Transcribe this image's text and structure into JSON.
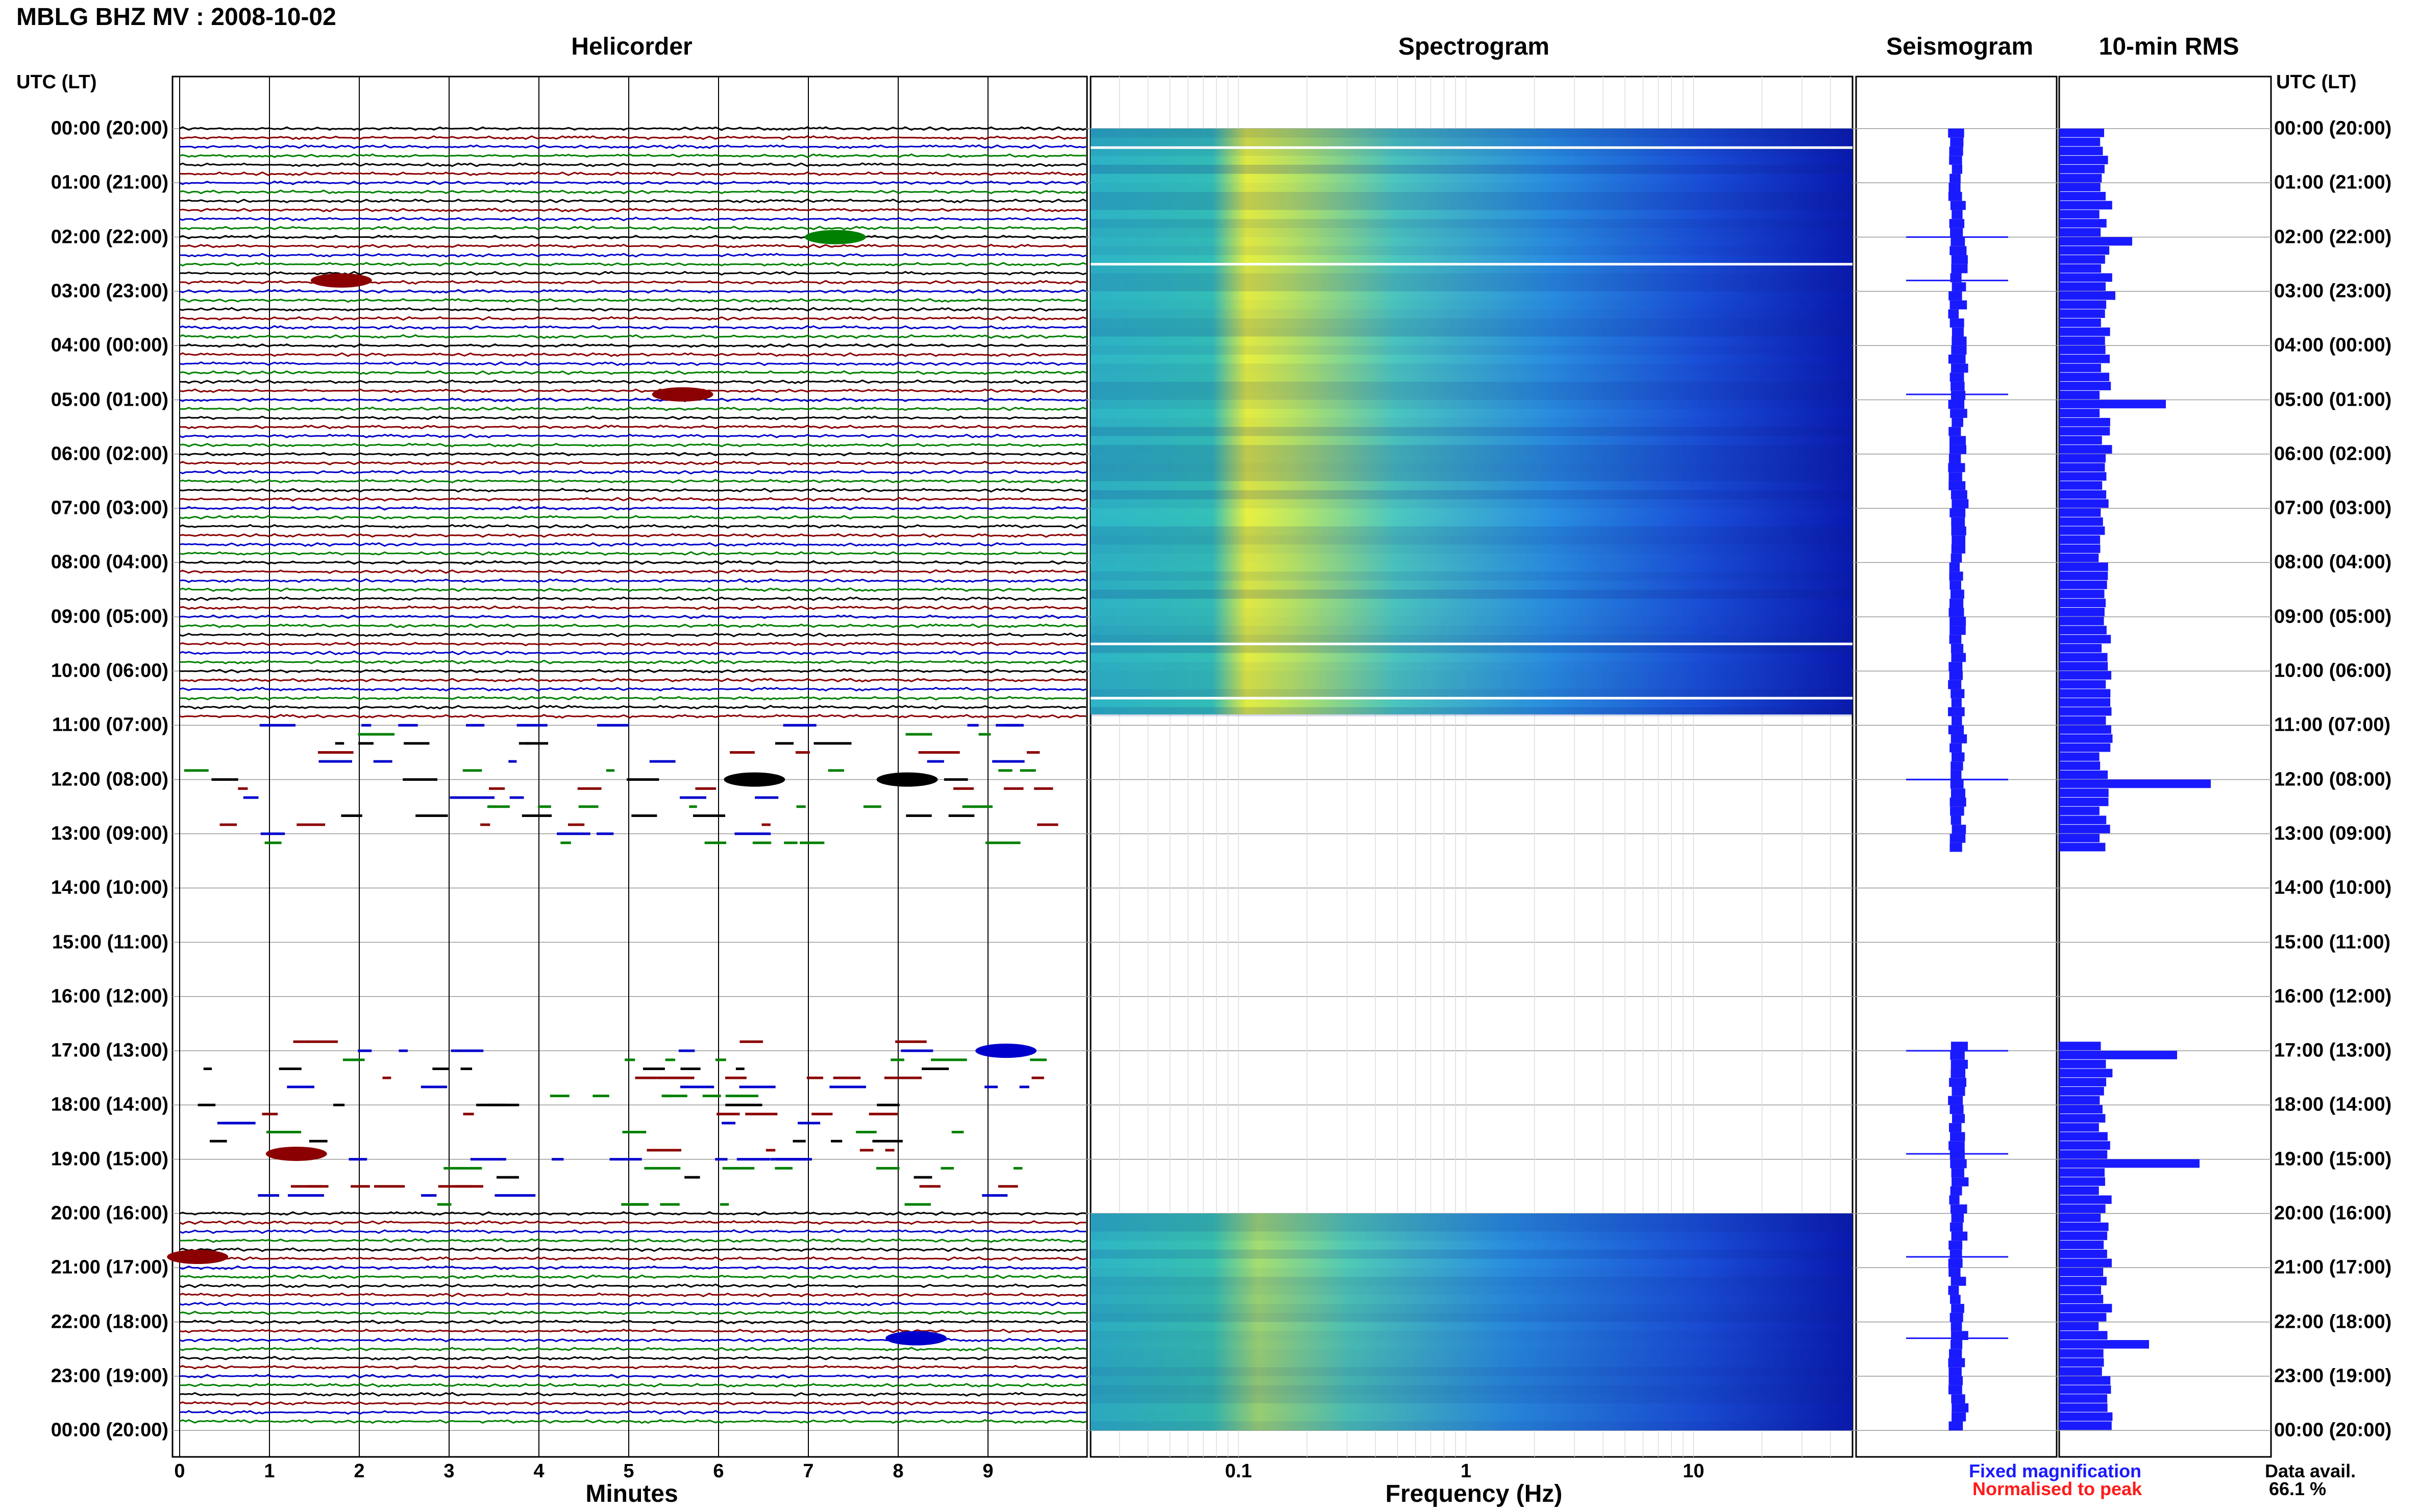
{
  "header": {
    "title": "MBLG BHZ MV : 2008-10-02"
  },
  "panels": {
    "helicorder": "Helicorder",
    "spectrogram": "Spectrogram",
    "seismogram": "Seismogram",
    "rms": "10-min RMS"
  },
  "axis": {
    "time_label": "UTC (LT)",
    "hours": [
      "00:00 (20:00)",
      "01:00 (21:00)",
      "02:00 (22:00)",
      "03:00 (23:00)",
      "04:00 (00:00)",
      "05:00 (01:00)",
      "06:00 (02:00)",
      "07:00 (03:00)",
      "08:00 (04:00)",
      "09:00 (05:00)",
      "10:00 (06:00)",
      "11:00 (07:00)",
      "12:00 (08:00)",
      "13:00 (09:00)",
      "14:00 (10:00)",
      "15:00 (11:00)",
      "16:00 (12:00)",
      "17:00 (13:00)",
      "18:00 (14:00)",
      "19:00 (15:00)",
      "20:00 (16:00)",
      "21:00 (17:00)",
      "22:00 (18:00)",
      "23:00 (19:00)",
      "00:00 (20:00)"
    ],
    "minutes_label": "Minutes",
    "frequency_label": "Frequency (Hz)"
  },
  "chart_data": {
    "type": "helicorder",
    "station": "MBLG",
    "channel": "BHZ",
    "network": "MV",
    "date": "2008-10-02",
    "minutes_ticks": [
      "0",
      "1",
      "2",
      "3",
      "4",
      "5",
      "6",
      "7",
      "8",
      "9"
    ],
    "frequency_ticks": [
      "0.1",
      "1",
      "10"
    ],
    "frequency_scale": "log",
    "trace_colors": [
      "#000000",
      "#8b0000",
      "#0000cd",
      "#008000"
    ],
    "data_segments_utc": [
      [
        0,
        11
      ],
      [
        11,
        13.2,
        "intermittent"
      ],
      [
        16.8,
        20,
        "intermittent"
      ],
      [
        20,
        24
      ]
    ],
    "spectrogram_segments_utc": [
      [
        0,
        10.8
      ],
      [
        20,
        24
      ]
    ],
    "events": [
      {
        "utc_hour": 2.0,
        "minute": 7.3,
        "color": "#008000"
      },
      {
        "utc_hour": 2.8,
        "minute": 1.8,
        "color": "#8b0000"
      },
      {
        "utc_hour": 4.9,
        "minute": 5.6,
        "color": "#8b0000"
      },
      {
        "utc_hour": 12.0,
        "minute": 6.4,
        "color": "#000000"
      },
      {
        "utc_hour": 12.0,
        "minute": 8.1,
        "color": "#000000"
      },
      {
        "utc_hour": 17.0,
        "minute": 9.2,
        "color": "#0000cd"
      },
      {
        "utc_hour": 18.9,
        "minute": 1.3,
        "color": "#8b0000"
      },
      {
        "utc_hour": 20.8,
        "minute": 0.2,
        "color": "#8b0000"
      },
      {
        "utc_hour": 22.3,
        "minute": 8.2,
        "color": "#0000cd"
      }
    ],
    "rms_10min": [
      {
        "utc_hour": 0,
        "value": 0.8
      },
      {
        "utc_hour": 2.0,
        "value": 1.3
      },
      {
        "utc_hour": 3.0,
        "value": 1.0
      },
      {
        "utc_hour": 5.0,
        "value": 1.9
      },
      {
        "utc_hour": 12.0,
        "value": 2.7
      },
      {
        "utc_hour": 17.0,
        "value": 2.1
      },
      {
        "utc_hour": 19.0,
        "value": 2.5
      },
      {
        "utc_hour": 22.4,
        "value": 1.6
      }
    ]
  },
  "legend": {
    "fixed": "Fixed magnification",
    "fixed_color": "#1a1aff",
    "normalised": "Normalised to peak",
    "normalised_color": "#ff1a1a"
  },
  "availability": {
    "label": "Data avail.",
    "value": "66.1 %"
  }
}
